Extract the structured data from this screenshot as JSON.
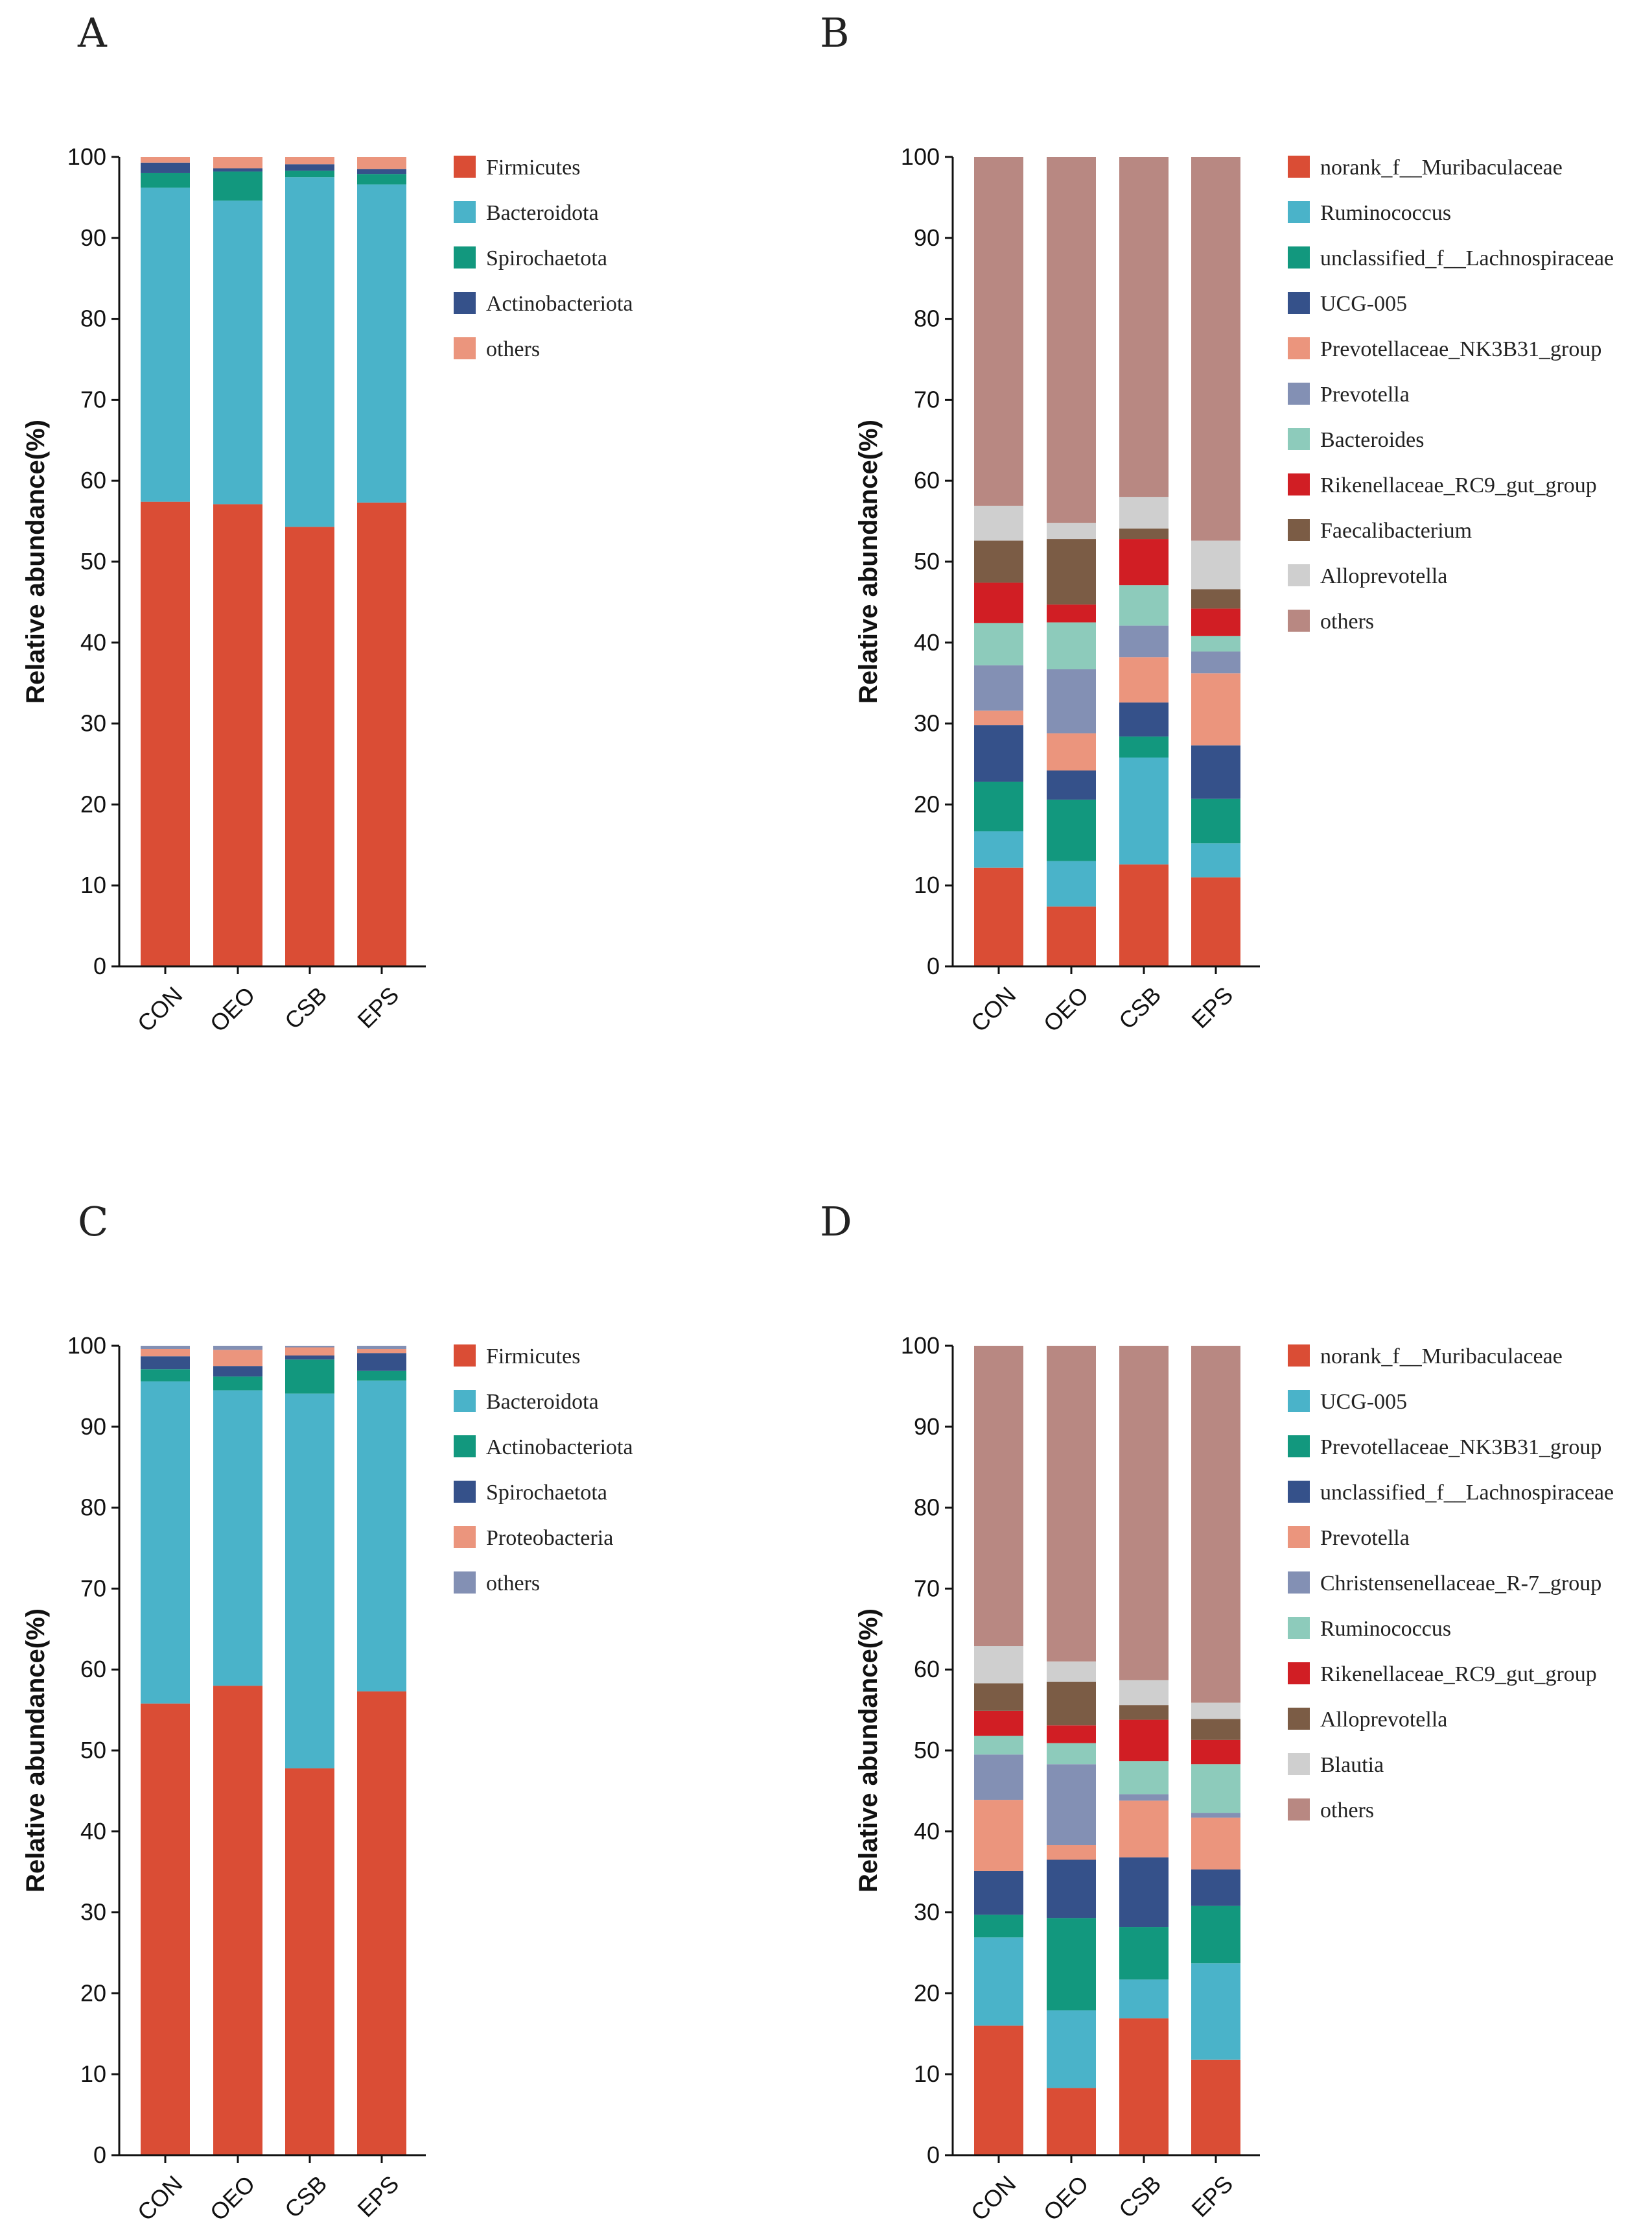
{
  "chart_data": [
    {
      "panel": "A",
      "type": "bar",
      "stacked": true,
      "ylabel": "Relative abundance(%)",
      "ylim": [
        0,
        100
      ],
      "yticks": [
        "0",
        "10",
        "20",
        "30",
        "40",
        "50",
        "60",
        "70",
        "80",
        "90",
        "100"
      ],
      "categories": [
        "CON",
        "OEO",
        "CSB",
        "EPS"
      ],
      "series": [
        {
          "name": "Firmicutes",
          "color": "#DA4D35",
          "values": [
            57.4,
            57.1,
            54.3,
            57.3
          ]
        },
        {
          "name": "Bacteroidota",
          "color": "#4AB3C9",
          "values": [
            38.8,
            37.5,
            43.2,
            39.3
          ]
        },
        {
          "name": "Spirochaetota",
          "color": "#12987E",
          "values": [
            1.8,
            3.6,
            0.8,
            1.3
          ]
        },
        {
          "name": "Actinobacteriota",
          "color": "#35518A",
          "values": [
            1.3,
            0.4,
            0.8,
            0.6
          ]
        },
        {
          "name": "others",
          "color": "#EB957D",
          "values": [
            0.7,
            1.4,
            0.9,
            1.5
          ]
        }
      ]
    },
    {
      "panel": "B",
      "type": "bar",
      "stacked": true,
      "ylabel": "Relative abundance(%)",
      "ylim": [
        0,
        100
      ],
      "yticks": [
        "0",
        "10",
        "20",
        "30",
        "40",
        "50",
        "60",
        "70",
        "80",
        "90",
        "100"
      ],
      "categories": [
        "CON",
        "OEO",
        "CSB",
        "EPS"
      ],
      "series": [
        {
          "name": "norank_f__Muribaculaceae",
          "color": "#DA4D35",
          "values": [
            12.2,
            7.4,
            12.6,
            11.0
          ]
        },
        {
          "name": "Ruminococcus",
          "color": "#4AB3C9",
          "values": [
            4.5,
            5.6,
            13.2,
            4.2
          ]
        },
        {
          "name": "unclassified_f__Lachnospiraceae",
          "color": "#12987E",
          "values": [
            6.1,
            7.6,
            2.6,
            5.5
          ]
        },
        {
          "name": "UCG-005",
          "color": "#35518A",
          "values": [
            7.0,
            3.6,
            4.2,
            6.6
          ]
        },
        {
          "name": "Prevotellaceae_NK3B31_group",
          "color": "#EB957D",
          "values": [
            1.8,
            4.6,
            5.6,
            8.9
          ]
        },
        {
          "name": "Prevotella",
          "color": "#8390B4",
          "values": [
            5.6,
            7.9,
            3.9,
            2.7
          ]
        },
        {
          "name": "Bacteroides",
          "color": "#8DCBBB",
          "values": [
            5.2,
            5.8,
            5.0,
            1.9
          ]
        },
        {
          "name": "Rikenellaceae_RC9_gut_group",
          "color": "#D11E24",
          "values": [
            5.0,
            2.2,
            5.7,
            3.4
          ]
        },
        {
          "name": "Faecalibacterium",
          "color": "#7B5C45",
          "values": [
            5.2,
            8.1,
            1.3,
            2.4
          ]
        },
        {
          "name": "Alloprevotella",
          "color": "#CFCFCF",
          "values": [
            4.3,
            2.0,
            3.9,
            6.0
          ]
        },
        {
          "name": "others",
          "color": "#B88882",
          "values": [
            43.1,
            45.2,
            42.0,
            47.4
          ]
        }
      ]
    },
    {
      "panel": "C",
      "type": "bar",
      "stacked": true,
      "ylabel": "Relative abundance(%)",
      "ylim": [
        0,
        100
      ],
      "yticks": [
        "0",
        "10",
        "20",
        "30",
        "40",
        "50",
        "60",
        "70",
        "80",
        "90",
        "100"
      ],
      "categories": [
        "CON",
        "OEO",
        "CSB",
        "EPS"
      ],
      "series": [
        {
          "name": "Firmicutes",
          "color": "#DA4D35",
          "values": [
            55.8,
            58.0,
            47.8,
            57.3
          ]
        },
        {
          "name": "Bacteroidota",
          "color": "#4AB3C9",
          "values": [
            39.8,
            36.5,
            46.3,
            38.4
          ]
        },
        {
          "name": "Actinobacteriota",
          "color": "#12987E",
          "values": [
            1.5,
            1.7,
            4.2,
            1.2
          ]
        },
        {
          "name": "Spirochaetota",
          "color": "#35518A",
          "values": [
            1.6,
            1.3,
            0.5,
            2.2
          ]
        },
        {
          "name": "Proteobacteria",
          "color": "#EB957D",
          "values": [
            0.9,
            2.0,
            1.0,
            0.5
          ]
        },
        {
          "name": "others",
          "color": "#8390B4",
          "values": [
            0.4,
            0.5,
            0.2,
            0.4
          ]
        }
      ]
    },
    {
      "panel": "D",
      "type": "bar",
      "stacked": true,
      "ylabel": "Relative abundance(%)",
      "ylim": [
        0,
        100
      ],
      "yticks": [
        "0",
        "10",
        "20",
        "30",
        "40",
        "50",
        "60",
        "70",
        "80",
        "90",
        "100"
      ],
      "categories": [
        "CON",
        "OEO",
        "CSB",
        "EPS"
      ],
      "series": [
        {
          "name": "norank_f__Muribaculaceae",
          "color": "#DA4D35",
          "values": [
            16.0,
            8.3,
            16.9,
            11.8
          ]
        },
        {
          "name": "UCG-005",
          "color": "#4AB3C9",
          "values": [
            10.9,
            9.6,
            4.8,
            11.9
          ]
        },
        {
          "name": "Prevotellaceae_NK3B31_group",
          "color": "#12987E",
          "values": [
            2.8,
            11.4,
            6.5,
            7.1
          ]
        },
        {
          "name": "unclassified_f__Lachnospiraceae",
          "color": "#35518A",
          "values": [
            5.4,
            7.2,
            8.6,
            4.5
          ]
        },
        {
          "name": "Prevotella",
          "color": "#EB957D",
          "values": [
            8.8,
            1.8,
            7.0,
            6.4
          ]
        },
        {
          "name": "Christensenellaceae_R-7_group",
          "color": "#8390B4",
          "values": [
            5.6,
            10.0,
            0.8,
            0.6
          ]
        },
        {
          "name": "Ruminococcus",
          "color": "#8DCBBB",
          "values": [
            2.3,
            2.6,
            4.1,
            6.0
          ]
        },
        {
          "name": "Rikenellaceae_RC9_gut_group",
          "color": "#D11E24",
          "values": [
            3.1,
            2.2,
            5.1,
            3.0
          ]
        },
        {
          "name": "Alloprevotella",
          "color": "#7B5C45",
          "values": [
            3.4,
            5.4,
            1.8,
            2.6
          ]
        },
        {
          "name": "Blautia",
          "color": "#CFCFCF",
          "values": [
            4.6,
            2.5,
            3.1,
            2.0
          ]
        },
        {
          "name": "others",
          "color": "#B88882",
          "values": [
            37.1,
            39.0,
            41.3,
            44.1
          ]
        }
      ]
    }
  ]
}
